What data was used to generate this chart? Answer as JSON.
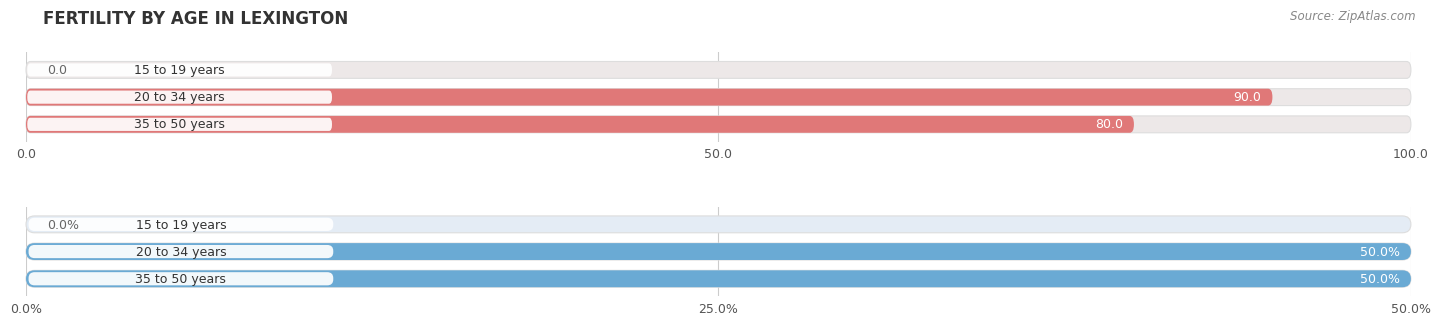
{
  "title": "FERTILITY BY AGE IN LEXINGTON",
  "source": "Source: ZipAtlas.com",
  "top_chart": {
    "categories": [
      "15 to 19 years",
      "20 to 34 years",
      "35 to 50 years"
    ],
    "values": [
      0.0,
      90.0,
      80.0
    ],
    "xlim": [
      0,
      100
    ],
    "xticks": [
      0.0,
      50.0,
      100.0
    ],
    "xtick_labels": [
      "0.0",
      "50.0",
      "100.0"
    ],
    "bar_color": "#E07878",
    "bar_bg_color": "#EDE8E8",
    "label_color_inside": "#FFFFFF",
    "label_color_outside": "#666666"
  },
  "bottom_chart": {
    "categories": [
      "15 to 19 years",
      "20 to 34 years",
      "35 to 50 years"
    ],
    "values": [
      0.0,
      50.0,
      50.0
    ],
    "xlim": [
      0,
      50
    ],
    "xticks": [
      0.0,
      25.0,
      50.0
    ],
    "xtick_labels": [
      "0.0%",
      "25.0%",
      "50.0%"
    ],
    "bar_color": "#6AAAD4",
    "bar_bg_color": "#E4ECF5",
    "label_color_inside": "#FFFFFF",
    "label_color_outside": "#666666"
  },
  "title_fontsize": 12,
  "source_fontsize": 8.5,
  "label_fontsize": 9,
  "category_fontsize": 9,
  "tick_fontsize": 9,
  "bar_height": 0.62,
  "bar_gap": 0.38,
  "background_color": "#FFFFFF",
  "grid_color": "#CCCCCC",
  "white_label_bg": "#FFFFFF"
}
